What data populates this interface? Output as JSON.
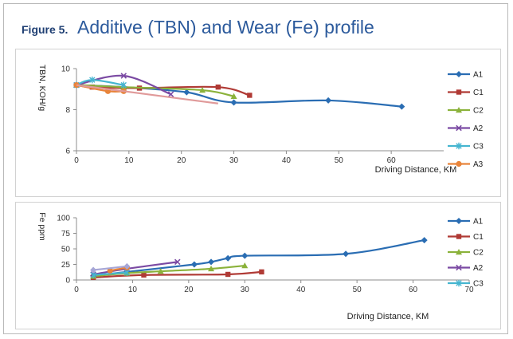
{
  "figure": {
    "label": "Figure 5.",
    "title": "Additive (TBN) and Wear (Fe) profile"
  },
  "chart_data": [
    {
      "type": "line",
      "title": "",
      "xlabel": "Driving Distance, KM",
      "ylabel": "TBN, KOH/g",
      "xlim": [
        0,
        70
      ],
      "ylim": [
        6,
        10
      ],
      "xticks": [
        0,
        10,
        20,
        30,
        40,
        50,
        60
      ],
      "yticks": [
        6,
        8,
        10
      ],
      "grid": false,
      "legend": "right",
      "series": [
        {
          "name": "A1",
          "color": "#2a6db3",
          "marker": "diamond",
          "x": [
            0,
            9,
            21,
            30,
            48,
            62
          ],
          "y": [
            9.2,
            9.1,
            8.85,
            8.35,
            8.45,
            8.15
          ]
        },
        {
          "name": "C1",
          "color": "#b03a35",
          "marker": "square",
          "x": [
            0,
            3,
            12,
            27,
            33
          ],
          "y": [
            9.2,
            9.1,
            9.05,
            9.1,
            8.7
          ]
        },
        {
          "name": "C2",
          "color": "#8bb23b",
          "marker": "triangle",
          "x": [
            0,
            9,
            24,
            30
          ],
          "y": [
            9.2,
            9.1,
            8.95,
            8.65
          ]
        },
        {
          "name": "A2",
          "color": "#7b4aa3",
          "marker": "x",
          "x": [
            0,
            9,
            18
          ],
          "y": [
            9.2,
            9.65,
            8.75
          ]
        },
        {
          "name": "C3",
          "color": "#45b5d0",
          "marker": "star",
          "x": [
            0,
            3,
            9
          ],
          "y": [
            9.2,
            9.45,
            9.2
          ]
        },
        {
          "name": "A3",
          "color": "#e8843a",
          "marker": "circle",
          "x": [
            0,
            6,
            9
          ],
          "y": [
            9.2,
            8.9,
            8.9
          ]
        },
        {
          "name": "",
          "color": "#e09a9a",
          "marker": "none",
          "x": [
            0,
            27
          ],
          "y": [
            9.2,
            8.3
          ]
        }
      ]
    },
    {
      "type": "line",
      "title": "",
      "xlabel": "Driving Distance, KM",
      "ylabel": "Fe ppm",
      "xlim": [
        0,
        70
      ],
      "ylim": [
        0,
        100
      ],
      "xticks": [
        0,
        10,
        20,
        30,
        40,
        50,
        60,
        70
      ],
      "yticks": [
        0,
        25,
        50,
        75,
        100
      ],
      "grid": false,
      "legend": "right",
      "series": [
        {
          "name": "A1",
          "color": "#2a6db3",
          "marker": "diamond",
          "x": [
            3,
            9,
            21,
            24,
            27,
            30,
            48,
            62
          ],
          "y": [
            7,
            13,
            25,
            29,
            35,
            39,
            42,
            64
          ]
        },
        {
          "name": "C1",
          "color": "#b03a35",
          "marker": "square",
          "x": [
            3,
            12,
            27,
            33
          ],
          "y": [
            4,
            8,
            9,
            13
          ]
        },
        {
          "name": "C2",
          "color": "#8bb23b",
          "marker": "triangle",
          "x": [
            3,
            9,
            15,
            24,
            30
          ],
          "y": [
            6,
            11,
            14,
            18,
            23
          ]
        },
        {
          "name": "A2",
          "color": "#7b4aa3",
          "marker": "x",
          "x": [
            3,
            9,
            18
          ],
          "y": [
            9,
            18,
            29
          ]
        },
        {
          "name": "C3",
          "color": "#45b5d0",
          "marker": "star",
          "x": [
            3,
            9
          ],
          "y": [
            8,
            12
          ]
        },
        {
          "name": "",
          "color": "#e8843a",
          "marker": "circle",
          "x": [
            6,
            9
          ],
          "y": [
            15,
            20
          ]
        },
        {
          "name": "",
          "color": "#a6a6d6",
          "marker": "diamond",
          "x": [
            3,
            9
          ],
          "y": [
            16,
            22
          ]
        }
      ]
    }
  ]
}
